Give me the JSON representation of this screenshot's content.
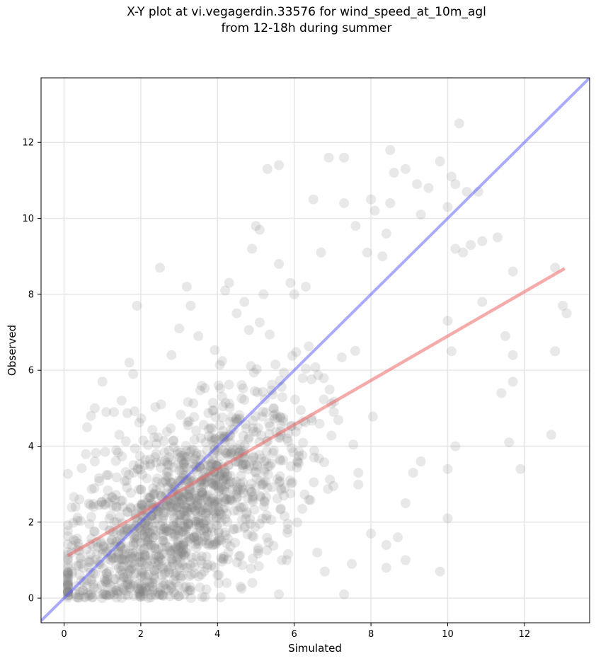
{
  "chart_data": {
    "type": "scatter",
    "title_lines": [
      "X-Y plot at vi.vegagerdin.33576 for wind_speed_at_10m_agl",
      "from 12-18h during summer"
    ],
    "xlabel": "Simulated",
    "ylabel": "Observed",
    "xlim": [
      -0.6,
      13.7
    ],
    "ylim": [
      -0.65,
      13.7
    ],
    "x_ticks": [
      0,
      2,
      4,
      6,
      8,
      10,
      12
    ],
    "y_ticks": [
      0,
      2,
      4,
      6,
      8,
      10,
      12
    ],
    "grid": true,
    "colors": {
      "points": "#808080",
      "one_to_one": "#5555ff",
      "regression": "#ee6666"
    },
    "one_to_one_line": {
      "x": [
        -0.6,
        13.7
      ],
      "y": [
        -0.6,
        13.7
      ]
    },
    "regression_line": {
      "x": [
        0.1,
        13.05
      ],
      "y": [
        1.12,
        8.68
      ]
    },
    "points": [
      [
        0.2,
        1.2
      ],
      [
        0.3,
        1.5
      ],
      [
        0.3,
        2.4
      ],
      [
        0.4,
        2.6
      ],
      [
        0.5,
        0.2
      ],
      [
        0.6,
        4.5
      ],
      [
        0.7,
        4.8
      ],
      [
        0.8,
        5.0
      ],
      [
        1.0,
        5.7
      ],
      [
        0.8,
        3.6
      ],
      [
        1.1,
        4.9
      ],
      [
        1.3,
        4.9
      ],
      [
        1.5,
        5.2
      ],
      [
        1.8,
        5.9
      ],
      [
        1.7,
        6.2
      ],
      [
        1.9,
        7.7
      ],
      [
        2.5,
        8.7
      ],
      [
        3.2,
        8.2
      ],
      [
        3.3,
        7.7
      ],
      [
        2.8,
        6.4
      ],
      [
        3.0,
        7.1
      ],
      [
        3.5,
        6.9
      ],
      [
        4.2,
        8.1
      ],
      [
        4.3,
        8.3
      ],
      [
        4.5,
        7.5
      ],
      [
        4.7,
        7.8
      ],
      [
        4.9,
        9.2
      ],
      [
        5.0,
        9.8
      ],
      [
        5.1,
        9.7
      ],
      [
        5.2,
        8.0
      ],
      [
        5.3,
        11.3
      ],
      [
        5.6,
        11.4
      ],
      [
        5.6,
        8.8
      ],
      [
        5.9,
        8.3
      ],
      [
        6.0,
        8.0
      ],
      [
        6.3,
        8.2
      ],
      [
        6.5,
        10.5
      ],
      [
        6.7,
        9.1
      ],
      [
        6.9,
        11.6
      ],
      [
        7.3,
        11.6
      ],
      [
        7.3,
        10.4
      ],
      [
        7.6,
        9.8
      ],
      [
        7.9,
        9.1
      ],
      [
        8.0,
        10.5
      ],
      [
        8.1,
        10.2
      ],
      [
        8.3,
        9.0
      ],
      [
        8.4,
        9.6
      ],
      [
        8.5,
        10.4
      ],
      [
        8.6,
        11.2
      ],
      [
        8.5,
        11.8
      ],
      [
        8.9,
        11.3
      ],
      [
        9.2,
        10.9
      ],
      [
        9.3,
        10.1
      ],
      [
        9.5,
        10.8
      ],
      [
        9.8,
        11.5
      ],
      [
        10.0,
        10.3
      ],
      [
        10.1,
        11.1
      ],
      [
        10.2,
        10.9
      ],
      [
        10.3,
        12.5
      ],
      [
        10.5,
        10.7
      ],
      [
        10.8,
        10.7
      ],
      [
        10.2,
        9.2
      ],
      [
        10.4,
        9.1
      ],
      [
        10.6,
        9.3
      ],
      [
        10.9,
        9.4
      ],
      [
        11.3,
        9.5
      ],
      [
        10.9,
        7.8
      ],
      [
        11.5,
        6.9
      ],
      [
        11.7,
        8.6
      ],
      [
        11.7,
        6.4
      ],
      [
        11.7,
        5.7
      ],
      [
        11.4,
        5.4
      ],
      [
        11.6,
        4.1
      ],
      [
        11.9,
        3.4
      ],
      [
        12.7,
        4.3
      ],
      [
        12.8,
        6.5
      ],
      [
        12.8,
        8.7
      ],
      [
        13.0,
        7.7
      ],
      [
        13.1,
        7.5
      ],
      [
        10.1,
        6.5
      ],
      [
        10.0,
        7.3
      ],
      [
        9.8,
        0.7
      ],
      [
        10.0,
        2.1
      ],
      [
        10.0,
        3.4
      ],
      [
        10.2,
        4.0
      ],
      [
        9.3,
        3.6
      ],
      [
        9.1,
        3.3
      ],
      [
        8.9,
        2.5
      ],
      [
        8.9,
        1.0
      ],
      [
        8.4,
        0.8
      ],
      [
        8.4,
        1.4
      ],
      [
        8.7,
        1.6
      ],
      [
        8.0,
        1.7
      ],
      [
        7.5,
        0.9
      ],
      [
        7.3,
        0.1
      ],
      [
        6.8,
        0.7
      ],
      [
        6.6,
        1.2
      ],
      [
        5.8,
        1.0
      ],
      [
        5.6,
        0.1
      ],
      [
        4.6,
        0.3
      ],
      [
        4.0,
        0.6
      ],
      [
        3.3,
        0.2
      ],
      [
        2.5,
        0.1
      ],
      [
        2.2,
        0.0
      ],
      [
        1.5,
        0.0
      ],
      [
        1.0,
        0.1
      ],
      [
        0.6,
        0.3
      ],
      [
        0.5,
        0.8
      ]
    ],
    "cluster": {
      "center": [
        3.0,
        3.0
      ],
      "spread": [
        1.6,
        1.4
      ],
      "count": 1400,
      "seed": 7
    }
  }
}
